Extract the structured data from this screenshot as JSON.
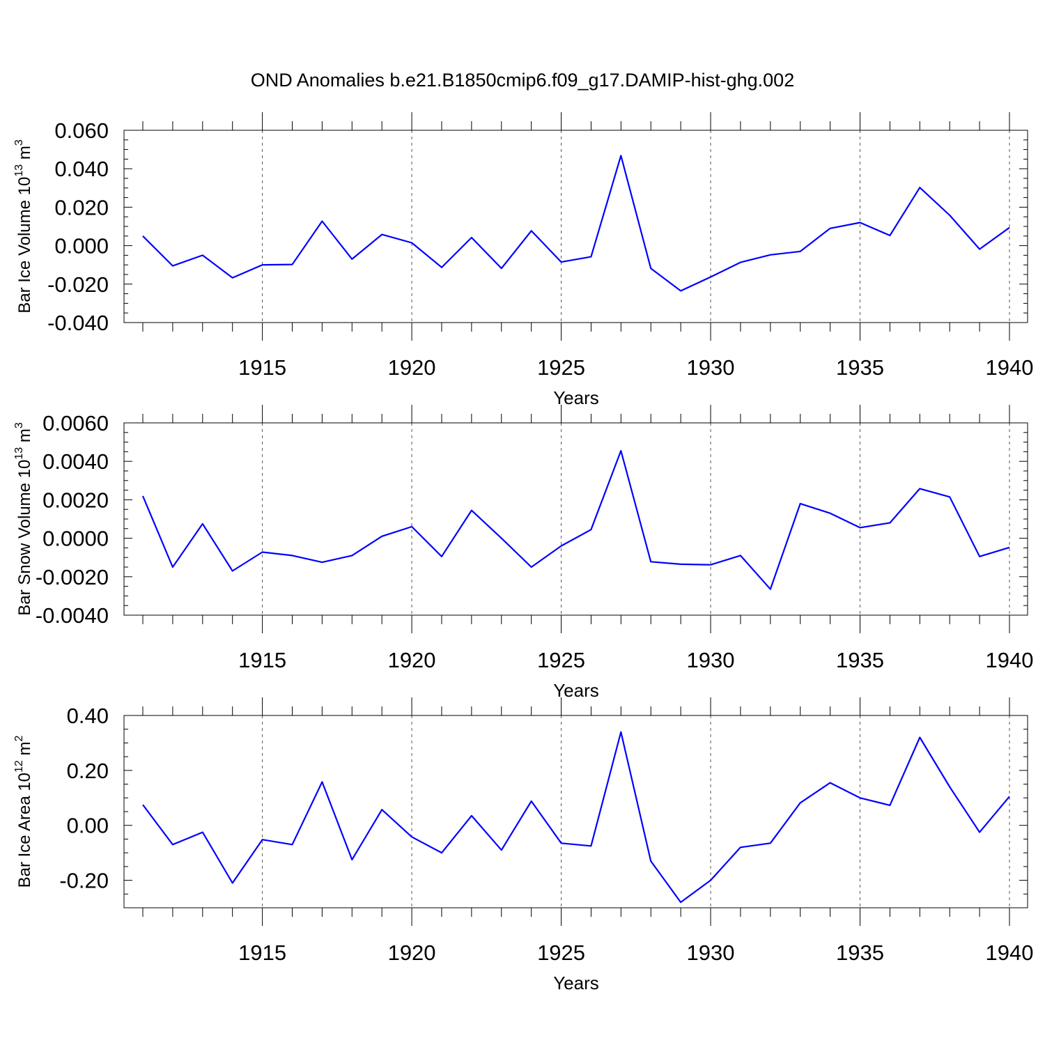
{
  "title": "OND Anomalies b.e21.B1850cmip6.f09_g17.DAMIP-hist-ghg.002",
  "colors": {
    "line": "#0000ff",
    "axis": "#000000",
    "grid": "#555555",
    "background": "#ffffff"
  },
  "chart_data": [
    {
      "type": "line",
      "title": "OND Anomalies b.e21.B1850cmip6.f09_g17.DAMIP-hist-ghg.002",
      "ylabel": "Bar Ice Volume 10",
      "ylabel_exp": "13",
      "ylabel_unit": " m",
      "ylabel_unit_exp": "3",
      "xlabel": "Years",
      "xlim": [
        1911,
        1940
      ],
      "ylim": [
        -0.04,
        0.06
      ],
      "yticks": [
        -0.04,
        -0.02,
        0.0,
        0.02,
        0.04,
        0.06
      ],
      "yticklabels": [
        "-0.040",
        "-0.020",
        "0.000",
        "0.020",
        "0.040",
        "0.060"
      ],
      "yminor": 0.005,
      "xticks": [
        1915,
        1920,
        1925,
        1930,
        1935,
        1940
      ],
      "xticklabels": [
        "1915",
        "1920",
        "1925",
        "1930",
        "1935",
        "1940"
      ],
      "grid": "vertical-dashed",
      "series": [
        {
          "name": "Bar Ice Volume",
          "x": [
            1911,
            1912,
            1913,
            1914,
            1915,
            1916,
            1917,
            1918,
            1919,
            1920,
            1921,
            1922,
            1923,
            1924,
            1925,
            1926,
            1927,
            1928,
            1929,
            1930,
            1931,
            1932,
            1933,
            1934,
            1935,
            1936,
            1937,
            1938,
            1939,
            1940
          ],
          "values": [
            0.005,
            -0.0105,
            -0.005,
            -0.0167,
            -0.01,
            -0.0098,
            0.0127,
            -0.007,
            0.0058,
            0.0015,
            -0.0113,
            0.0042,
            -0.0118,
            0.0077,
            -0.0085,
            -0.0058,
            0.0468,
            -0.0118,
            -0.0235,
            -0.0163,
            -0.0087,
            -0.0048,
            -0.003,
            0.009,
            0.012,
            0.0053,
            0.0302,
            0.0158,
            -0.0018,
            0.0094
          ]
        }
      ]
    },
    {
      "type": "line",
      "ylabel": "Bar Snow Volume 10",
      "ylabel_exp": "13",
      "ylabel_unit": " m",
      "ylabel_unit_exp": "3",
      "xlabel": "Years",
      "xlim": [
        1911,
        1940
      ],
      "ylim": [
        -0.004,
        0.006
      ],
      "yticks": [
        -0.004,
        -0.002,
        0.0,
        0.002,
        0.004,
        0.006
      ],
      "yticklabels": [
        "-0.0040",
        "-0.0020",
        "0.0000",
        "0.0020",
        "0.0040",
        "0.0060"
      ],
      "yminor": 0.0005,
      "xticks": [
        1915,
        1920,
        1925,
        1930,
        1935,
        1940
      ],
      "xticklabels": [
        "1915",
        "1920",
        "1925",
        "1930",
        "1935",
        "1940"
      ],
      "grid": "vertical-dashed",
      "series": [
        {
          "name": "Bar Snow Volume",
          "x": [
            1911,
            1912,
            1913,
            1914,
            1915,
            1916,
            1917,
            1918,
            1919,
            1920,
            1921,
            1922,
            1923,
            1924,
            1925,
            1926,
            1927,
            1928,
            1929,
            1930,
            1931,
            1932,
            1933,
            1934,
            1935,
            1936,
            1937,
            1938,
            1939,
            1940
          ],
          "values": [
            0.0022,
            -0.0015,
            0.00075,
            -0.0017,
            -0.00072,
            -0.0009,
            -0.00125,
            -0.0009,
            0.0001,
            0.0006,
            -0.00095,
            0.00145,
            0.0,
            -0.0015,
            -0.0004,
            0.00045,
            0.00455,
            -0.00122,
            -0.00135,
            -0.00138,
            -0.0009,
            -0.00265,
            0.0018,
            0.0013,
            0.00055,
            0.0008,
            0.00258,
            0.00215,
            -0.00095,
            -0.00048
          ]
        }
      ]
    },
    {
      "type": "line",
      "ylabel": "Bar Ice Area 10",
      "ylabel_exp": "12",
      "ylabel_unit": " m",
      "ylabel_unit_exp": "2",
      "xlabel": "Years",
      "xlim": [
        1911,
        1940
      ],
      "ylim": [
        -0.3,
        0.4
      ],
      "yticks": [
        -0.2,
        0.0,
        0.2,
        0.4
      ],
      "yticklabels": [
        "-0.20",
        "0.00",
        "0.20",
        "0.40"
      ],
      "yminor": 0.05,
      "xticks": [
        1915,
        1920,
        1925,
        1930,
        1935,
        1940
      ],
      "xticklabels": [
        "1915",
        "1920",
        "1925",
        "1930",
        "1935",
        "1940"
      ],
      "grid": "vertical-dashed",
      "series": [
        {
          "name": "Bar Ice Area",
          "x": [
            1911,
            1912,
            1913,
            1914,
            1915,
            1916,
            1917,
            1918,
            1919,
            1920,
            1921,
            1922,
            1923,
            1924,
            1925,
            1926,
            1927,
            1928,
            1929,
            1930,
            1931,
            1932,
            1933,
            1934,
            1935,
            1936,
            1937,
            1938,
            1939,
            1940
          ],
          "values": [
            0.075,
            -0.07,
            -0.025,
            -0.21,
            -0.052,
            -0.07,
            0.158,
            -0.125,
            0.057,
            -0.042,
            -0.1,
            0.035,
            -0.09,
            0.088,
            -0.065,
            -0.075,
            0.34,
            -0.13,
            -0.28,
            -0.2,
            -0.08,
            -0.065,
            0.082,
            0.155,
            0.1,
            0.073,
            0.32,
            0.14,
            -0.025,
            0.105
          ]
        }
      ]
    }
  ]
}
